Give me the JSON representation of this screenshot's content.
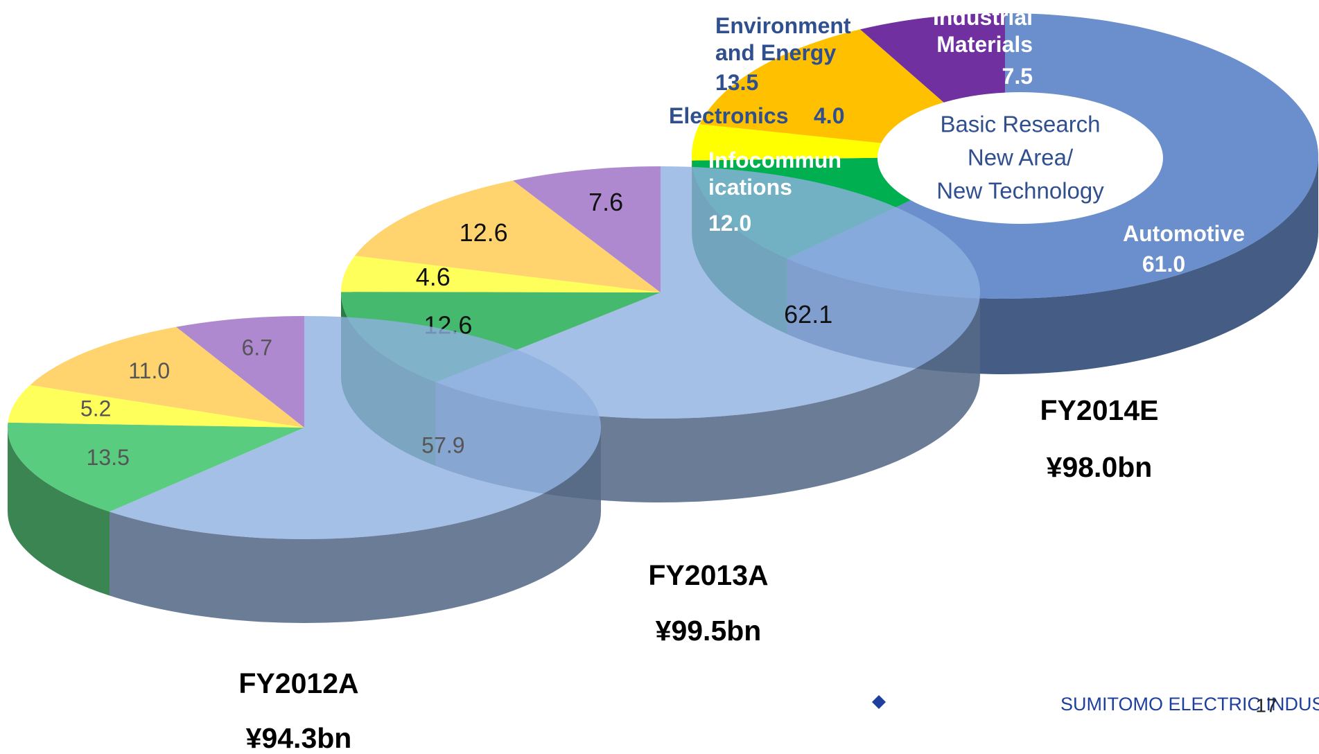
{
  "chart_data": [
    {
      "type": "pie",
      "title": "FY2012A",
      "subtitle": "¥94.3bn",
      "values": [
        57.9,
        13.5,
        5.2,
        11.0,
        6.7
      ],
      "value_labels": [
        "57.9",
        "13.5",
        "5.2",
        "11.0",
        "6.7"
      ],
      "colors": [
        "#8fb0e0",
        "#2fbf5f",
        "#ffff33",
        "#ffc84a",
        "#9a6cc4"
      ],
      "opacity": 0.8
    },
    {
      "type": "pie",
      "title": "FY2013A",
      "subtitle": "¥99.5bn",
      "values": [
        62.1,
        12.6,
        4.6,
        12.6,
        7.6
      ],
      "value_labels": [
        "62.1",
        "12.6",
        "4.6",
        "12.6",
        "7.6"
      ],
      "colors": [
        "#8fb0e0",
        "#16a84a",
        "#ffff33",
        "#ffc84a",
        "#9a6cc4"
      ],
      "opacity": 0.8
    },
    {
      "type": "pie",
      "title": "FY2014E",
      "subtitle": "¥98.0bn",
      "categories": [
        "Automotive",
        "Infocommunications",
        "Electronics",
        "Environment and Energy",
        "Industrial Materials"
      ],
      "values": [
        61.0,
        12.0,
        4.0,
        13.5,
        7.5
      ],
      "value_labels": [
        "61.0",
        "12.0",
        "4.0",
        "13.5",
        "7.5"
      ],
      "colors": [
        "#6a8fcc",
        "#00b050",
        "#ffff00",
        "#ffc000",
        "#7030a0"
      ],
      "opacity": 1,
      "annotations": [
        "Basic Research",
        "New Area/",
        "New Technology"
      ]
    }
  ],
  "footer": {
    "company": "SUMITOMO ELECTRIC INDUSTRIES, LTD.",
    "page": "17"
  }
}
